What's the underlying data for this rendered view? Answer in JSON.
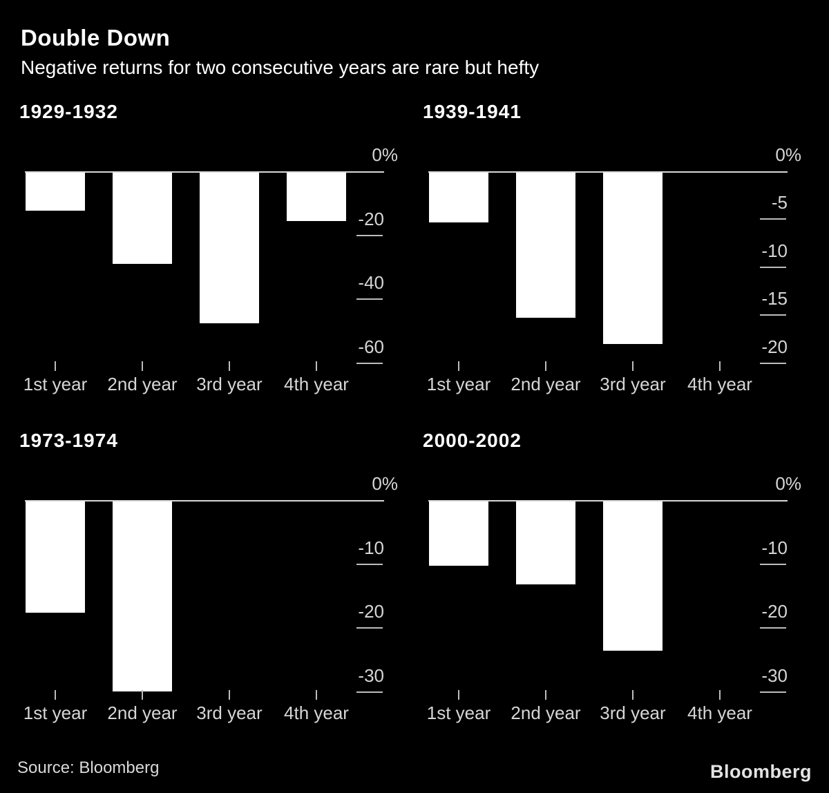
{
  "page": {
    "title": "Double Down",
    "subtitle": "Negative returns for two consecutive years are rare but hefty"
  },
  "footer": {
    "source": "Source: Bloomberg",
    "brand": "Bloomberg"
  },
  "colors": {
    "background": "#000000",
    "bar": "#ffffff",
    "title_text": "#ffffff",
    "axis_text": "#d6d6d6",
    "axis_line": "#d9d9d9",
    "tick_line": "#bdbdbd",
    "source_text": "#d9d9d9"
  },
  "chart_data": [
    {
      "type": "bar",
      "title": "1929-1932",
      "categories": [
        "1st year",
        "2nd year",
        "3rd year",
        "4th year"
      ],
      "values": [
        -11.9,
        -28.5,
        -47.1,
        -15.1
      ],
      "ylabel": "%",
      "ylim": [
        -62.7,
        0
      ],
      "yticks": [
        0,
        -20,
        -40,
        -60
      ],
      "ytick_labels": [
        "0%",
        "-20",
        "-40",
        "-60"
      ],
      "axis_side": "right",
      "grid": false,
      "bar_color": "#ffffff"
    },
    {
      "type": "bar",
      "title": "1939-1941",
      "categories": [
        "1st year",
        "2nd year",
        "3rd year",
        "4th year"
      ],
      "values": [
        -5.2,
        -15.1,
        -17.9,
        null
      ],
      "ylabel": "%",
      "ylim": [
        -20.9,
        0
      ],
      "yticks": [
        0,
        -5,
        -10,
        -15,
        -20
      ],
      "ytick_labels": [
        "0%",
        "-5",
        "-10",
        "-15",
        "-20"
      ],
      "axis_side": "right",
      "grid": false,
      "bar_color": "#ffffff"
    },
    {
      "type": "bar",
      "title": "1973-1974",
      "categories": [
        "1st year",
        "2nd year",
        "3rd year",
        "4th year"
      ],
      "values": [
        -17.4,
        -29.7,
        null,
        null
      ],
      "ylabel": "%",
      "ylim": [
        -31.35,
        0
      ],
      "yticks": [
        0,
        -10,
        -20,
        -30
      ],
      "ytick_labels": [
        "0%",
        "-10",
        "-20",
        "-30"
      ],
      "axis_side": "right",
      "grid": false,
      "bar_color": "#ffffff"
    },
    {
      "type": "bar",
      "title": "2000-2002",
      "categories": [
        "1st year",
        "2nd year",
        "3rd year",
        "4th year"
      ],
      "values": [
        -10.1,
        -13.0,
        -23.4,
        null
      ],
      "ylabel": "%",
      "ylim": [
        -31.35,
        0
      ],
      "yticks": [
        0,
        -10,
        -20,
        -30
      ],
      "ytick_labels": [
        "0%",
        "-10",
        "-20",
        "-30"
      ],
      "axis_side": "right",
      "grid": false,
      "bar_color": "#ffffff"
    }
  ]
}
